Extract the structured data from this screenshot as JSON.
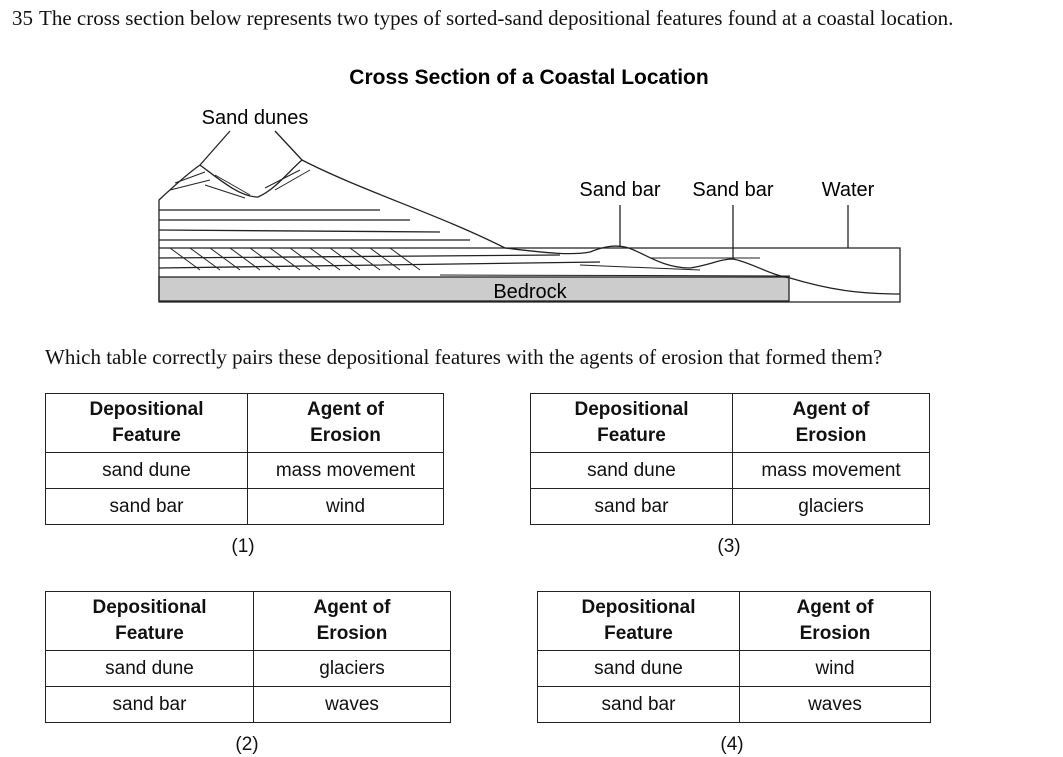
{
  "question": {
    "number": "35",
    "text": "The cross section below represents two types of sorted-sand depositional features found at a coastal location."
  },
  "diagram": {
    "title": "Cross Section of a Coastal Location",
    "labels": {
      "dunes": "Sand dunes",
      "bar_1": "Sand bar",
      "bar_2": "Sand bar",
      "water": "Water",
      "bedrock": "Bedrock"
    }
  },
  "prompt": "Which table correctly pairs these depositional features with the agents of erosion that formed them?",
  "options": [
    {
      "label": "(1)",
      "headers": [
        "Depositional Feature",
        "Agent of Erosion"
      ],
      "rows": [
        [
          "sand dune",
          "mass movement"
        ],
        [
          "sand bar",
          "wind"
        ]
      ]
    },
    {
      "label": "(2)",
      "headers": [
        "Depositional Feature",
        "Agent of Erosion"
      ],
      "rows": [
        [
          "sand dune",
          "glaciers"
        ],
        [
          "sand bar",
          "waves"
        ]
      ]
    },
    {
      "label": "(3)",
      "headers": [
        "Depositional Feature",
        "Agent of Erosion"
      ],
      "rows": [
        [
          "sand dune",
          "mass movement"
        ],
        [
          "sand bar",
          "glaciers"
        ]
      ]
    },
    {
      "label": "(4)",
      "headers": [
        "Depositional Feature",
        "Agent of Erosion"
      ],
      "rows": [
        [
          "sand dune",
          "wind"
        ],
        [
          "sand bar",
          "waves"
        ]
      ]
    }
  ]
}
